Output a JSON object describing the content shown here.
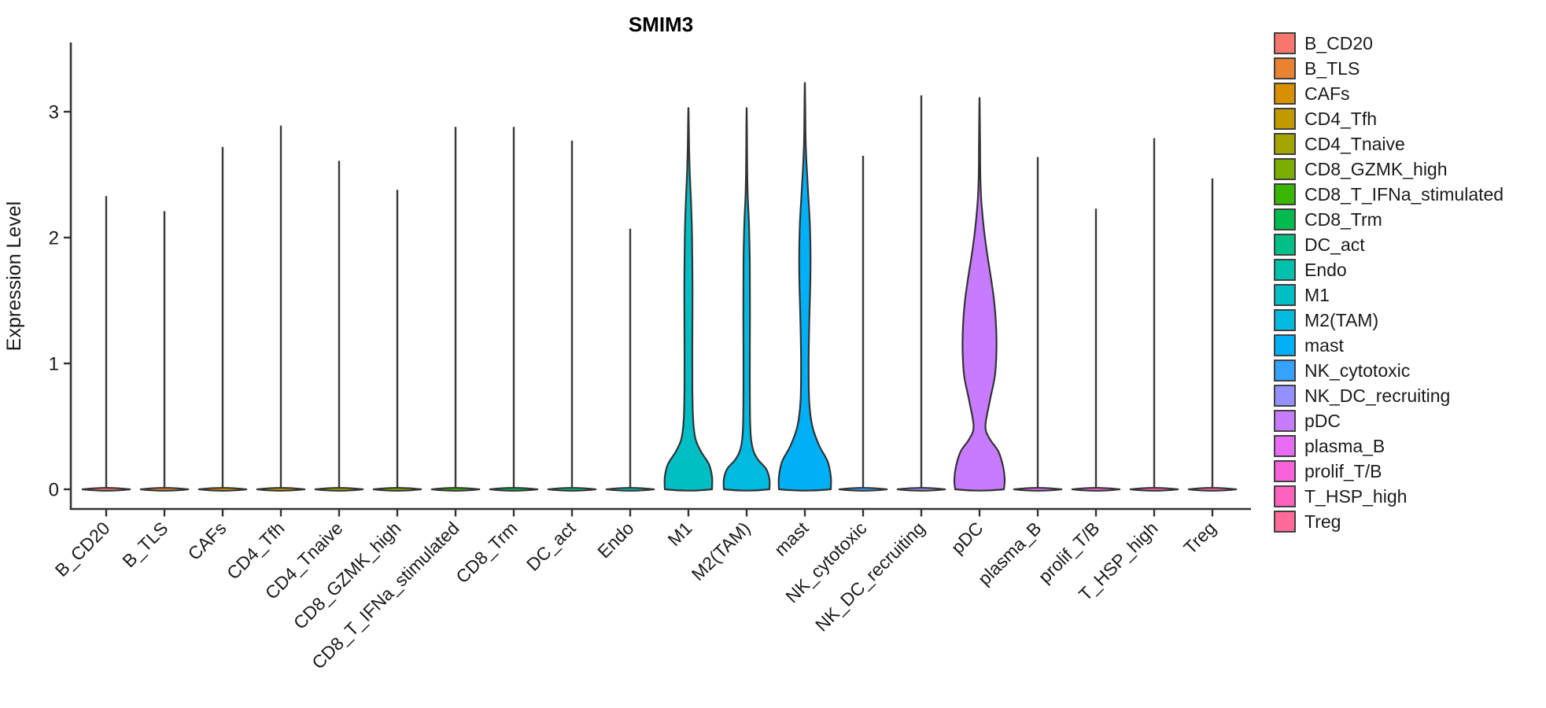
{
  "title": "SMIM3",
  "y_axis": {
    "label": "Expression Level",
    "ticks": [
      "0",
      "1",
      "2",
      "3"
    ]
  },
  "legend": {
    "position": "right",
    "items": [
      {
        "label": "B_CD20",
        "color": "#F8766D"
      },
      {
        "label": "B_TLS",
        "color": "#EA8331"
      },
      {
        "label": "CAFs",
        "color": "#D89000"
      },
      {
        "label": "CD4_Tfh",
        "color": "#C09B00"
      },
      {
        "label": "CD4_Tnaive",
        "color": "#A3A500"
      },
      {
        "label": "CD8_GZMK_high",
        "color": "#7CAE00"
      },
      {
        "label": "CD8_T_IFNa_stimulated",
        "color": "#39B600"
      },
      {
        "label": "CD8_Trm",
        "color": "#00BB4E"
      },
      {
        "label": "DC_act",
        "color": "#00C087"
      },
      {
        "label": "Endo",
        "color": "#00C1AB"
      },
      {
        "label": "M1",
        "color": "#00BFC4"
      },
      {
        "label": "M2(TAM)",
        "color": "#00BAE0"
      },
      {
        "label": "mast",
        "color": "#00B0F6"
      },
      {
        "label": "NK_cytotoxic",
        "color": "#35A2FF"
      },
      {
        "label": "NK_DC_recruiting",
        "color": "#9590FF"
      },
      {
        "label": "pDC",
        "color": "#C77CFF"
      },
      {
        "label": "plasma_B",
        "color": "#E76BF3"
      },
      {
        "label": "prolif_T/B",
        "color": "#FA62DB"
      },
      {
        "label": "T_HSP_high",
        "color": "#FF62BC"
      },
      {
        "label": "Treg",
        "color": "#FF6A98"
      }
    ]
  },
  "chart_data": {
    "type": "violin",
    "title": "SMIM3",
    "xlabel": "",
    "ylabel": "Expression Level",
    "ylim": [
      0,
      3.55
    ],
    "yticks": [
      0,
      1,
      2,
      3
    ],
    "grid": false,
    "legend_position": "right",
    "categories": [
      "B_CD20",
      "B_TLS",
      "CAFs",
      "CD4_Tfh",
      "CD4_Tnaive",
      "CD8_GZMK_high",
      "CD8_T_IFNa_stimulated",
      "CD8_Trm",
      "DC_act",
      "Endo",
      "M1",
      "M2(TAM)",
      "mast",
      "NK_cytotoxic",
      "NK_DC_recruiting",
      "pDC",
      "plasma_B",
      "prolif_T/B",
      "T_HSP_high",
      "Treg"
    ],
    "colors": [
      "#F8766D",
      "#EA8331",
      "#D89000",
      "#C09B00",
      "#A3A500",
      "#7CAE00",
      "#39B600",
      "#00BB4E",
      "#00C087",
      "#00C1AB",
      "#00BFC4",
      "#00BAE0",
      "#00B0F6",
      "#35A2FF",
      "#9590FF",
      "#C77CFF",
      "#E76BF3",
      "#FA62DB",
      "#FF62BC",
      "#FF6A98"
    ],
    "max_expression": [
      2.33,
      2.21,
      2.72,
      2.89,
      2.61,
      2.38,
      2.88,
      2.88,
      2.77,
      2.07,
      3.03,
      3.03,
      3.23,
      2.65,
      3.13,
      3.11,
      2.64,
      2.23,
      2.79,
      2.47
    ],
    "zero_concentrated": [
      "B_CD20",
      "B_TLS",
      "CAFs",
      "CD4_Tfh",
      "CD4_Tnaive",
      "CD8_GZMK_high",
      "CD8_T_IFNa_stimulated",
      "CD8_Trm",
      "DC_act",
      "Endo",
      "NK_cytotoxic",
      "NK_DC_recruiting",
      "plasma_B",
      "prolif_T/B",
      "T_HSP_high",
      "Treg"
    ],
    "violins": {
      "M1": [
        [
          0,
          30
        ],
        [
          0.1,
          30
        ],
        [
          0.2,
          26
        ],
        [
          0.3,
          16
        ],
        [
          0.4,
          9
        ],
        [
          0.55,
          6
        ],
        [
          0.8,
          5
        ],
        [
          1.2,
          5
        ],
        [
          1.6,
          5.2
        ],
        [
          2.0,
          4.6
        ],
        [
          2.3,
          3.2
        ],
        [
          2.5,
          1.8
        ],
        [
          2.7,
          0.9
        ],
        [
          3.03,
          0
        ]
      ],
      "M2(TAM)": [
        [
          0,
          29
        ],
        [
          0.08,
          29
        ],
        [
          0.16,
          25
        ],
        [
          0.24,
          14
        ],
        [
          0.33,
          7.5
        ],
        [
          0.5,
          4.6
        ],
        [
          0.9,
          4
        ],
        [
          1.4,
          4.2
        ],
        [
          1.8,
          4
        ],
        [
          2.1,
          3
        ],
        [
          2.3,
          1.6
        ],
        [
          2.5,
          0.8
        ],
        [
          3.03,
          0
        ]
      ],
      "mast": [
        [
          0,
          33
        ],
        [
          0.1,
          33
        ],
        [
          0.22,
          29
        ],
        [
          0.35,
          18
        ],
        [
          0.5,
          9.5
        ],
        [
          0.7,
          5.5
        ],
        [
          1.0,
          4.8
        ],
        [
          1.3,
          5.5
        ],
        [
          1.6,
          6.8
        ],
        [
          1.85,
          7.2
        ],
        [
          2.1,
          6.4
        ],
        [
          2.35,
          4.2
        ],
        [
          2.6,
          2
        ],
        [
          2.8,
          0.9
        ],
        [
          3.23,
          0
        ]
      ],
      "pDC": [
        [
          0,
          31
        ],
        [
          0.08,
          32
        ],
        [
          0.18,
          30
        ],
        [
          0.3,
          24
        ],
        [
          0.4,
          13
        ],
        [
          0.5,
          7.5
        ],
        [
          0.7,
          13
        ],
        [
          0.9,
          19.5
        ],
        [
          1.1,
          21.5
        ],
        [
          1.3,
          21
        ],
        [
          1.5,
          18.5
        ],
        [
          1.7,
          14
        ],
        [
          1.9,
          9
        ],
        [
          2.1,
          5
        ],
        [
          2.3,
          2.2
        ],
        [
          2.5,
          1
        ],
        [
          2.8,
          0.6
        ],
        [
          3.11,
          0
        ]
      ]
    }
  }
}
